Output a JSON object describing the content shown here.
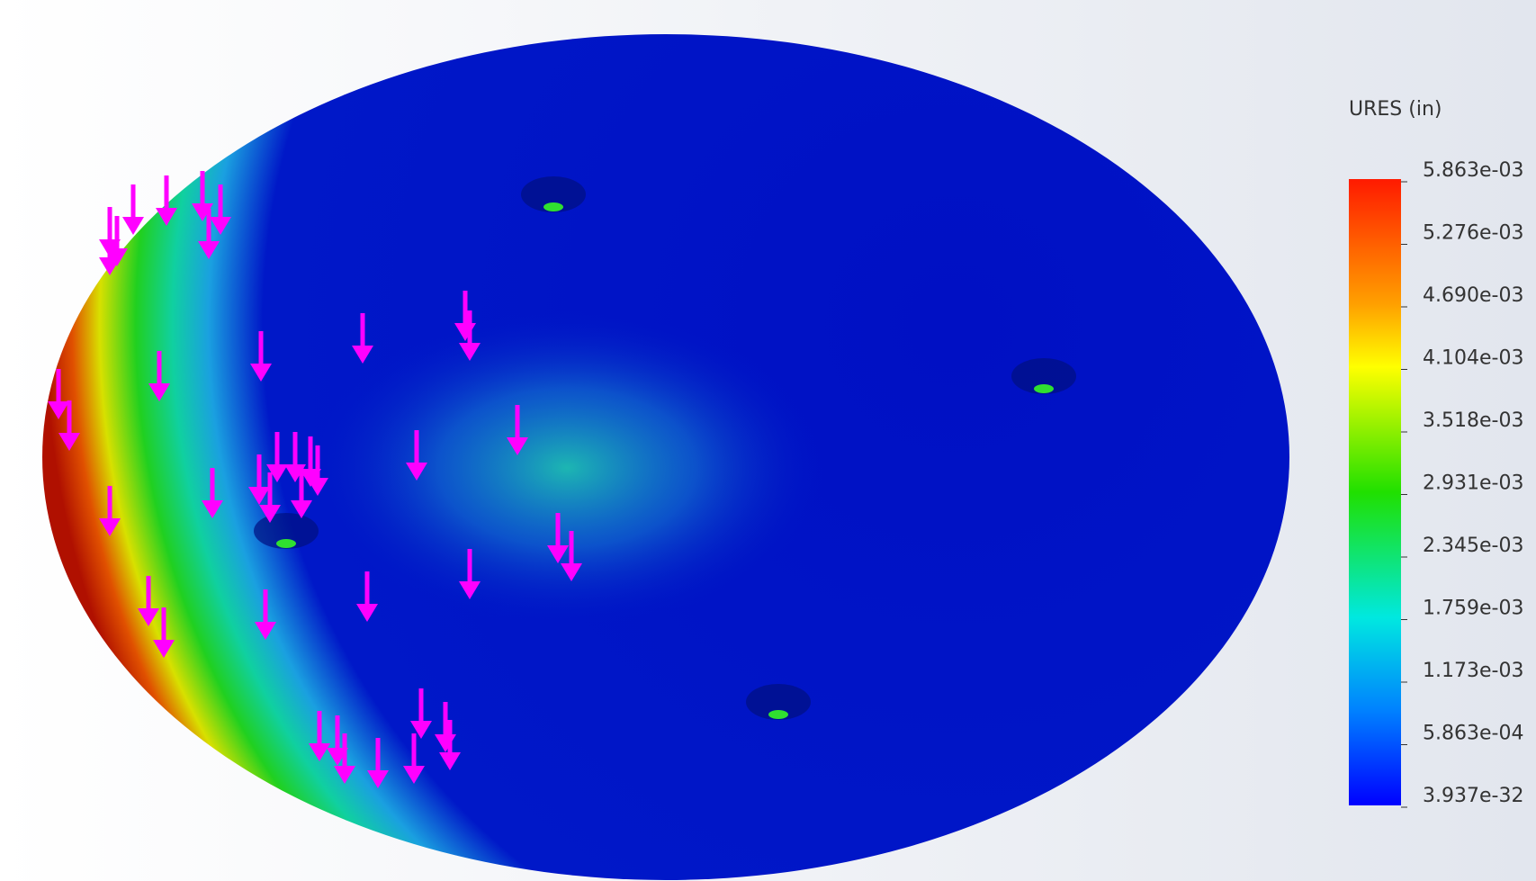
{
  "legend": {
    "title": "URES (in)",
    "labels": [
      "5.863e-03",
      "5.276e-03",
      "4.690e-03",
      "4.104e-03",
      "3.518e-03",
      "2.931e-03",
      "2.345e-03",
      "1.759e-03",
      "1.173e-03",
      "5.863e-04",
      "3.937e-32"
    ]
  }
}
